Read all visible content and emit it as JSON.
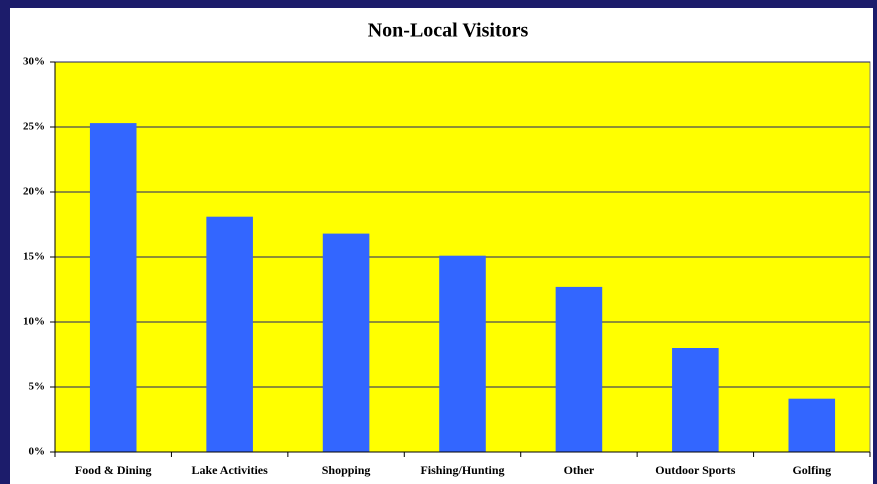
{
  "chart_data": {
    "type": "bar",
    "title": "Non-Local Visitors",
    "categories": [
      "Food & Dining",
      "Lake Activities",
      "Shopping",
      "Fishing/Hunting",
      "Other",
      "Outdoor Sports",
      "Golfing"
    ],
    "values": [
      25.3,
      18.1,
      16.8,
      15.1,
      12.7,
      8.0,
      4.1
    ],
    "color": "#3366ff",
    "plot_color": "#ffff00",
    "ylim": [
      0,
      30
    ],
    "yticks": [
      {
        "value": 0,
        "label": "0%"
      },
      {
        "value": 5,
        "label": "5%"
      },
      {
        "value": 10,
        "label": "10%"
      },
      {
        "value": 15,
        "label": "15%"
      },
      {
        "value": 20,
        "label": "20%"
      },
      {
        "value": 25,
        "label": "25%"
      },
      {
        "value": 30,
        "label": "30%"
      }
    ],
    "grid": true
  }
}
